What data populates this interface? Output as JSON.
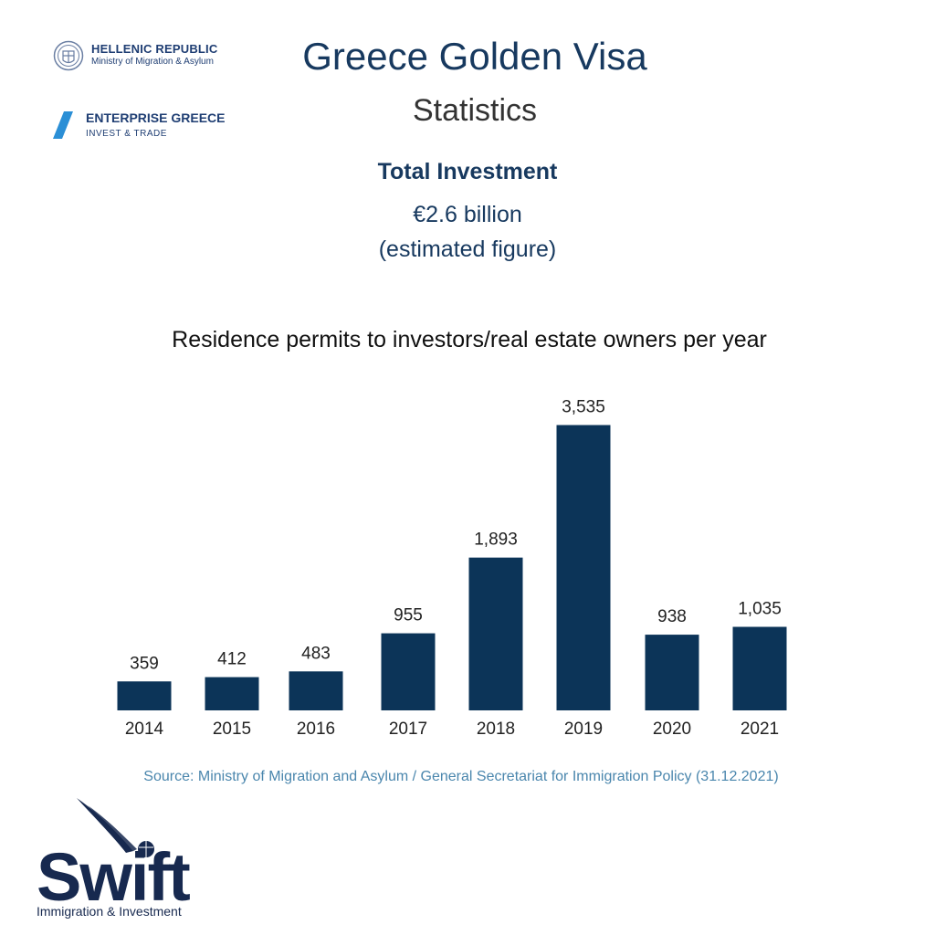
{
  "header": {
    "title": "Greece Golden Visa",
    "subtitle": "Statistics",
    "investment_label": "Total Investment",
    "investment_value": "€2.6 billion",
    "investment_note": "(estimated figure)"
  },
  "logos": {
    "hellenic_line1": "HELLENIC REPUBLIC",
    "hellenic_line2": "Ministry of Migration & Asylum",
    "enterprise_line1": "ENTERPRISE GREECE",
    "enterprise_line2": "INVEST & TRADE",
    "swift_word": "Swift",
    "swift_tagline": "Immigration & Investment"
  },
  "colors": {
    "bar": "#0c3458",
    "title": "#17395f",
    "source": "#4a86ad",
    "brand_blue": "#1f3e73",
    "accent_blue": "#2b8fd6"
  },
  "chart_data": {
    "type": "bar",
    "title": "Residence permits to investors/real estate owners per year",
    "categories": [
      "2014",
      "2015",
      "2016",
      "2017",
      "2018",
      "2019",
      "2020",
      "2021"
    ],
    "values": [
      359,
      412,
      483,
      955,
      1893,
      3535,
      938,
      1035
    ],
    "value_labels": [
      "359",
      "412",
      "483",
      "955",
      "1,893",
      "3,535",
      "938",
      "1,035"
    ],
    "xlabel": "",
    "ylabel": "",
    "grid": false,
    "legend": "none"
  },
  "source": "Source: Ministry of Migration and Asylum / General Secretariat for Immigration Policy (31.12.2021)"
}
